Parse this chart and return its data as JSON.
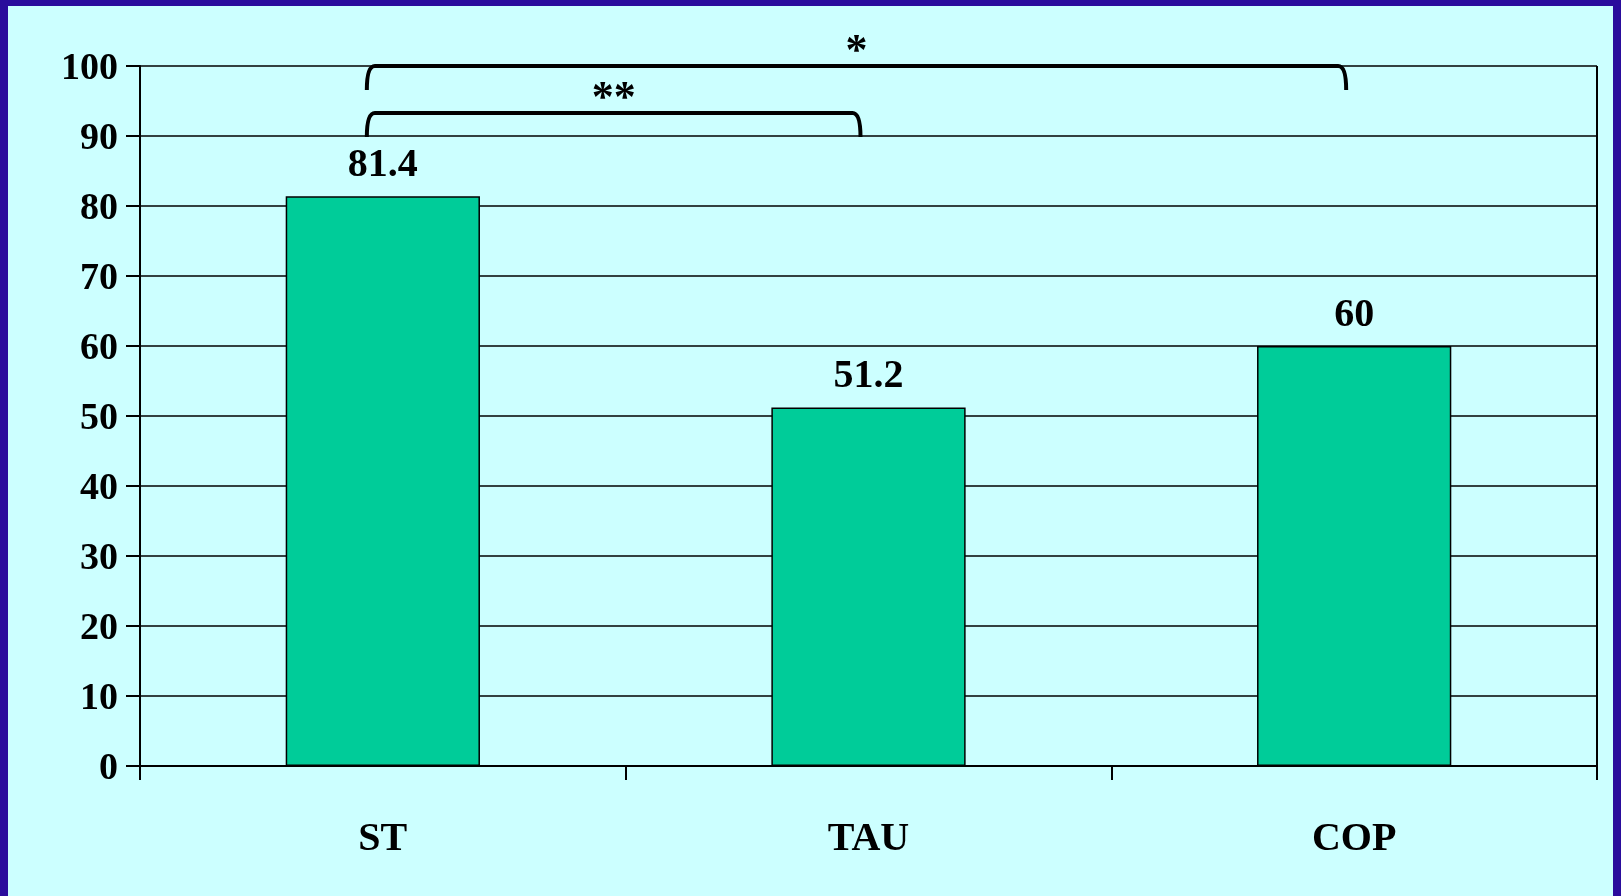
{
  "chart_data": {
    "type": "bar",
    "categories": [
      "ST",
      "TAU",
      "COP"
    ],
    "values": [
      81.4,
      51.2,
      60
    ],
    "color": "#00cc99",
    "ylim": [
      0,
      100
    ],
    "yticks": [
      0,
      10,
      20,
      30,
      40,
      50,
      60,
      70,
      80,
      90,
      100
    ],
    "grid": "y",
    "data_labels": true,
    "annotations": [
      "**",
      "*"
    ]
  }
}
